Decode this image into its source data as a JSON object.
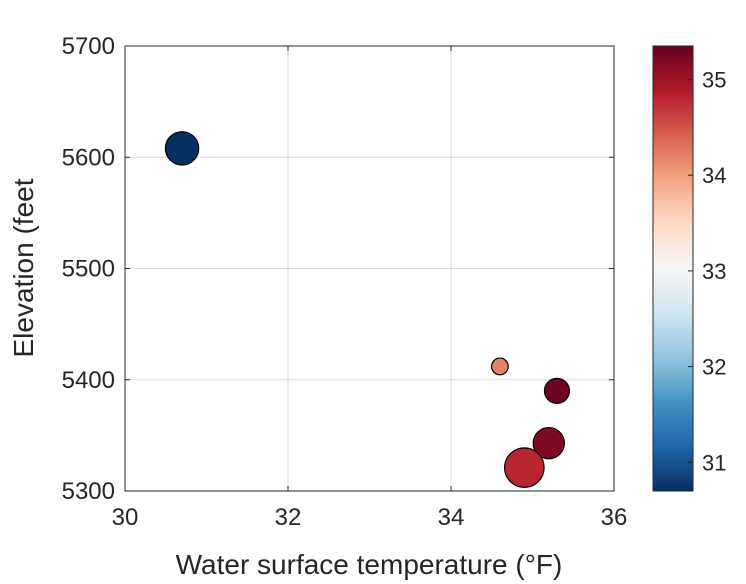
{
  "chart_data": {
    "type": "scatter",
    "title": "",
    "xlabel": "Water surface temperature (°F)",
    "ylabel": "Elevation (feet",
    "xlim": [
      30,
      36
    ],
    "ylim": [
      5300,
      5700
    ],
    "xticks": [
      30,
      32,
      34,
      36
    ],
    "xtick_labels": [
      "30",
      "32",
      "34",
      "36"
    ],
    "yticks": [
      5300,
      5400,
      5500,
      5600,
      5700
    ],
    "ytick_labels": [
      "5300",
      "5400",
      "5500",
      "5600",
      "5700"
    ],
    "grid": true,
    "points": [
      {
        "x": 30.7,
        "y": 5608,
        "color_value": 30.7,
        "size": 3.2
      },
      {
        "x": 34.6,
        "y": 5412,
        "color_value": 34.2,
        "size": 1.6
      },
      {
        "x": 35.3,
        "y": 5390,
        "color_value": 35.3,
        "size": 2.4
      },
      {
        "x": 35.2,
        "y": 5343,
        "color_value": 35.2,
        "size": 3.0
      },
      {
        "x": 34.9,
        "y": 5321,
        "color_value": 34.8,
        "size": 3.8
      }
    ],
    "colorbar": {
      "colormap": "red-blue diverging",
      "range": [
        30.7,
        35.35
      ],
      "ticks": [
        31,
        32,
        33,
        34,
        35
      ],
      "tick_labels": [
        "31",
        "32",
        "33",
        "34",
        "35"
      ],
      "colors": [
        "#053061",
        "#2166ac",
        "#4393c3",
        "#92c5de",
        "#d1e5f0",
        "#f7f7f7",
        "#fddbc7",
        "#f4a582",
        "#d6604d",
        "#b2182b",
        "#67001f"
      ]
    }
  }
}
